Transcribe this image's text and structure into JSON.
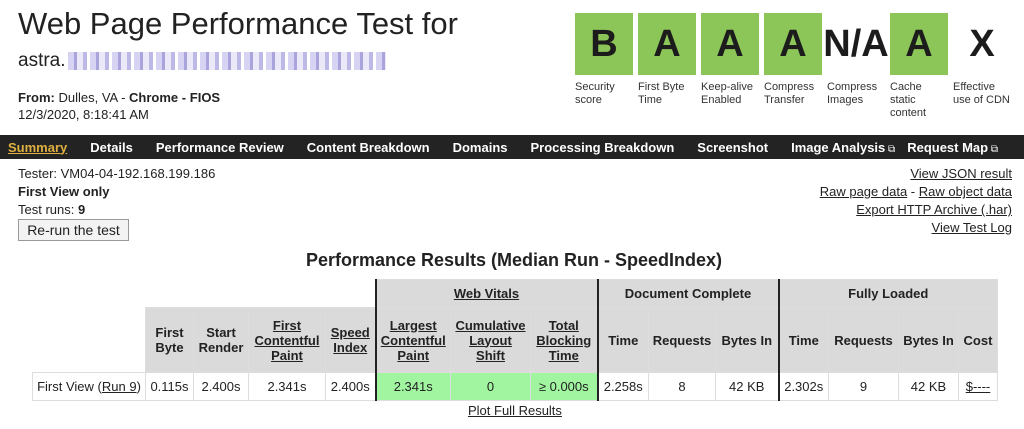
{
  "header": {
    "title": "Web Page Performance Test for",
    "url_prefix": "astra.",
    "from_label": "From:",
    "location": "Dulles, VA",
    "browser": "Chrome",
    "connection": "FIOS",
    "date": "12/3/2020, 8:18:41 AM"
  },
  "grades": [
    {
      "grade": "B",
      "label": "Security score",
      "color": "#8cc659"
    },
    {
      "grade": "A",
      "label": "First Byte Time",
      "color": "#8cc659"
    },
    {
      "grade": "A",
      "label": "Keep-alive Enabled",
      "color": "#8cc659"
    },
    {
      "grade": "A",
      "label": "Compress Transfer",
      "color": "#8cc659"
    },
    {
      "grade": "N/A",
      "label": "Compress Images",
      "color": ""
    },
    {
      "grade": "A",
      "label": "Cache static content",
      "color": "#8cc659"
    },
    {
      "grade": "X",
      "label": "Effective use of CDN",
      "color": ""
    }
  ],
  "nav": [
    "Summary",
    "Details",
    "Performance Review",
    "Content Breakdown",
    "Domains",
    "Processing Breakdown",
    "Screenshot",
    "Image Analysis",
    "Request Map"
  ],
  "info": {
    "tester": "Tester: VM04-04-192.168.199.186",
    "view": "First View only",
    "runs_label": "Test runs:",
    "runs": "9",
    "rerun": "Re-run the test"
  },
  "links": [
    "View JSON result",
    "Raw page data",
    "-",
    "Raw object data",
    "Export HTTP Archive (.har)",
    "View Test Log"
  ],
  "results": {
    "title": "Performance Results (Median Run - SpeedIndex)",
    "groups": [
      "Web Vitals",
      "Document Complete",
      "Fully Loaded"
    ],
    "headers": [
      "First Byte",
      "Start Render",
      "First Contentful Paint",
      "Speed Index",
      "Largest Contentful Paint",
      "Cumulative Layout Shift",
      "Total Blocking Time",
      "Time",
      "Requests",
      "Bytes In",
      "Time",
      "Requests",
      "Bytes In",
      "Cost"
    ],
    "row": {
      "label": "First View (",
      "run": "Run 9",
      "close": ")",
      "values": [
        "0.115s",
        "2.400s",
        "2.341s",
        "2.400s",
        "2.341s",
        "0",
        "≥ 0.000s",
        "2.258s",
        "8",
        "42 KB",
        "2.302s",
        "9",
        "42 KB",
        "$----"
      ]
    },
    "plot": "Plot Full Results",
    "good_color": "#a2f5a0"
  }
}
